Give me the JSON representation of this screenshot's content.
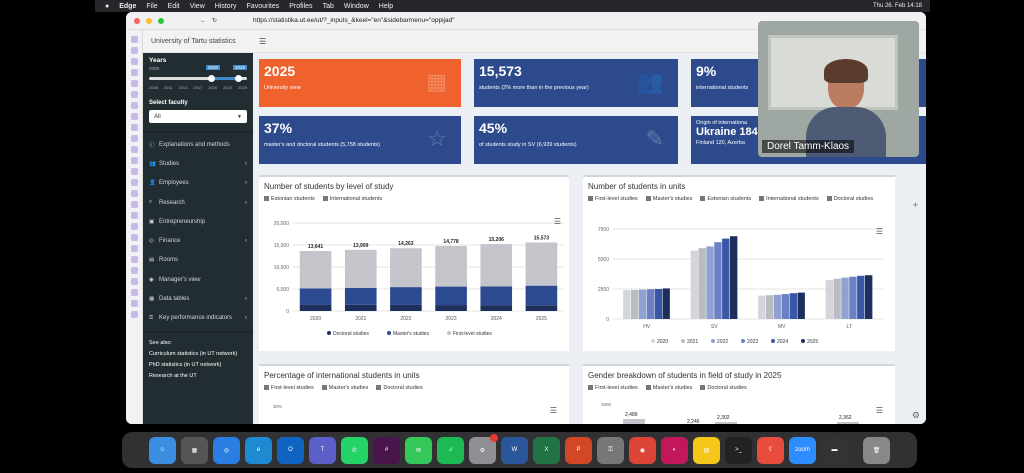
{
  "menubar": {
    "app": "Edge",
    "items": [
      "File",
      "Edit",
      "View",
      "History",
      "Favourites",
      "Profiles",
      "Tab",
      "Window",
      "Help"
    ],
    "clock": "Thu 26. Feb 14:18"
  },
  "browser": {
    "url": "https://statistika.ut.ee/ut/?_inputs_&keel=\"en\"&sidebarmenu=\"oppijad\""
  },
  "app": {
    "brand": "University of Tartu statistics",
    "menu_icon": "☰"
  },
  "sidebar": {
    "years_label": "Years",
    "year_min": "2008",
    "year_max": "2025",
    "selected_from": "2020",
    "selected_to": "2025",
    "year_ticks": [
      "2008",
      "2011",
      "2014",
      "2017",
      "2020",
      "2023",
      "2025"
    ],
    "faculty_label": "Select faculty",
    "faculty_value": "All",
    "menu": [
      {
        "label": "Explanations and methods",
        "icon": "info-icon"
      },
      {
        "label": "Studies",
        "icon": "users-icon",
        "caret": "‹"
      },
      {
        "label": "Employees",
        "icon": "user-icon",
        "caret": "‹"
      },
      {
        "label": "Research",
        "icon": "search-icon",
        "caret": "‹"
      },
      {
        "label": "Entrepreneurship",
        "icon": "briefcase-icon"
      },
      {
        "label": "Finance",
        "icon": "coins-icon",
        "caret": "‹"
      },
      {
        "label": "Rooms",
        "icon": "building-icon"
      },
      {
        "label": "Manager's view",
        "icon": "eye-icon"
      },
      {
        "label": "Data tables",
        "icon": "table-icon",
        "caret": "‹"
      },
      {
        "label": "Key performance indicators",
        "icon": "key-icon",
        "caret": "‹"
      }
    ],
    "see_also": "See also:",
    "links": [
      "Curriculum statistics",
      "PhD statistics",
      "Research at the UT"
    ],
    "network_note": "(in UT network)"
  },
  "boxes": [
    {
      "value": "2025",
      "desc": "University view",
      "color": "#f0622d"
    },
    {
      "value": "15,573",
      "desc": "students (2% more than in the previous year)",
      "color": "#2c4a8c"
    },
    {
      "value": "9%",
      "desc": "international students",
      "color": "#2c4a8c"
    },
    {
      "value": "37%",
      "desc": "master's and doctoral students (5,758 students)",
      "color": "#2c4a8c"
    },
    {
      "value": "45%",
      "desc": "of students study in SV (6,939 students)",
      "color": "#2c4a8c"
    },
    {
      "value": "Ukraine 184",
      "desc": "Finland 120, Azerba",
      "prefix": "Origin of internationa",
      "color": "#2c4a8c"
    }
  ],
  "panels": {
    "p1": {
      "title": "Number of students by level of study",
      "filters": [
        "Estonian students",
        "International students"
      ]
    },
    "p2": {
      "title": "Number of students in units",
      "filters": [
        "First-level studies",
        "Master's studies",
        "Estonian students",
        "International students",
        "Doctoral studies"
      ]
    },
    "p3": {
      "title": "Percentage of international students in units",
      "filters": [
        "First-level studies",
        "Master's studies",
        "Doctoral studies"
      ]
    },
    "p4": {
      "title": "Gender breakdown of students in field of study in 2025",
      "filters": [
        "First-level studies",
        "Master's studies",
        "Doctoral studies"
      ]
    }
  },
  "chart_data": [
    {
      "type": "bar",
      "title": "Number of students by level of study",
      "categories": [
        "2020",
        "2021",
        "2022",
        "2023",
        "2024",
        "2025"
      ],
      "stacked": true,
      "ylim": [
        0,
        20000
      ],
      "yticks": [
        "0",
        "5,000",
        "10,000",
        "15,000",
        "20,000"
      ],
      "series": [
        {
          "name": "Doctoral studies",
          "color": "#1f2f5c",
          "values": [
            1450,
            1400,
            1380,
            1350,
            1330,
            1300
          ]
        },
        {
          "name": "Master's studies",
          "color": "#2b4a8f",
          "values": [
            3700,
            3850,
            4050,
            4200,
            4250,
            4458
          ]
        },
        {
          "name": "First-level studies",
          "color": "#c3c5cb",
          "values": [
            8491,
            8659,
            8833,
            9228,
            9626,
            9815
          ]
        }
      ],
      "totals": [
        "13,641",
        "13,909",
        "14,263",
        "14,778",
        "15,206",
        "15,573"
      ]
    },
    {
      "type": "bar",
      "title": "Number of students in units",
      "categories": [
        "HV",
        "SV",
        "MV",
        "LT"
      ],
      "ylim": [
        0,
        7500
      ],
      "yticks": [
        "0",
        "2500",
        "5000",
        "7500"
      ],
      "series": [
        {
          "name": "2020",
          "color": "#d3d5da",
          "values": [
            2400,
            5700,
            1950,
            3250
          ]
        },
        {
          "name": "2021",
          "color": "#b9bcc3",
          "values": [
            2420,
            5900,
            1980,
            3350
          ]
        },
        {
          "name": "2022",
          "color": "#8fa0d1",
          "values": [
            2450,
            6050,
            2020,
            3450
          ]
        },
        {
          "name": "2023",
          "color": "#6c80c4",
          "values": [
            2480,
            6400,
            2080,
            3520
          ]
        },
        {
          "name": "2024",
          "color": "#3a56a6",
          "values": [
            2500,
            6700,
            2150,
            3600
          ]
        },
        {
          "name": "2025",
          "color": "#1f2f5c",
          "values": [
            2550,
            6900,
            2200,
            3650
          ]
        }
      ]
    },
    {
      "type": "bar",
      "title": "Gender breakdown of students in field of study in 2025",
      "yticks": [
        "1000"
      ],
      "labels": [
        "2,489",
        "2,246",
        "2,302",
        "2,362"
      ]
    }
  ],
  "percentage_tick": "30%",
  "pip": {
    "name": "Dorel Tamm-Klaos"
  }
}
